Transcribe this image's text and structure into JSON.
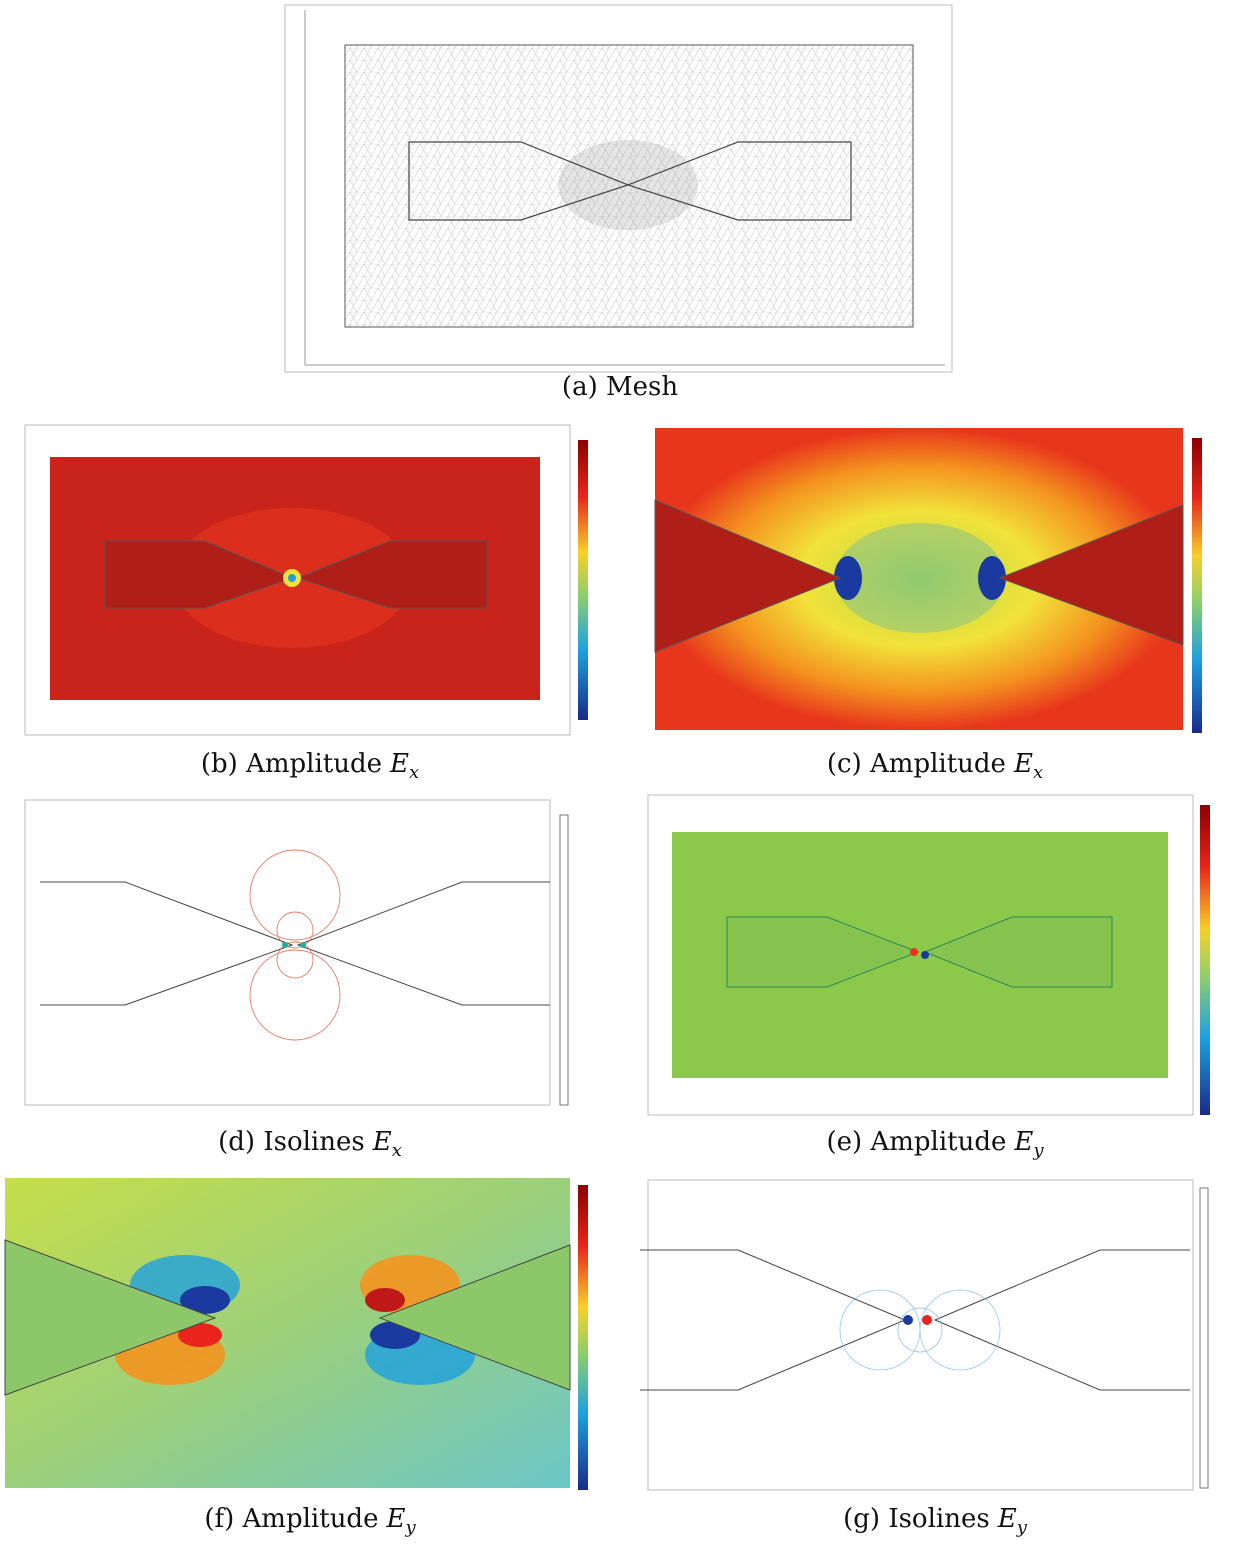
{
  "panels": [
    {
      "caption": {
        "label": "(a) Mesh"
      }
    },
    {
      "caption": {
        "label": "(b) Amplitude",
        "symbol": "E",
        "subscript": "x"
      }
    },
    {
      "caption": {
        "label": "(c) Amplitude",
        "symbol": "E",
        "subscript": "x"
      }
    },
    {
      "caption": {
        "label": "(d) Isolines",
        "symbol": "E",
        "subscript": "x"
      }
    },
    {
      "caption": {
        "label": "(e) Amplitude",
        "symbol": "E",
        "subscript": "y"
      }
    },
    {
      "caption": {
        "label": "(f) Amplitude",
        "symbol": "E",
        "subscript": "y"
      }
    },
    {
      "caption": {
        "label": "(g) Isolines",
        "symbol": "E",
        "subscript": "y"
      }
    }
  ]
}
